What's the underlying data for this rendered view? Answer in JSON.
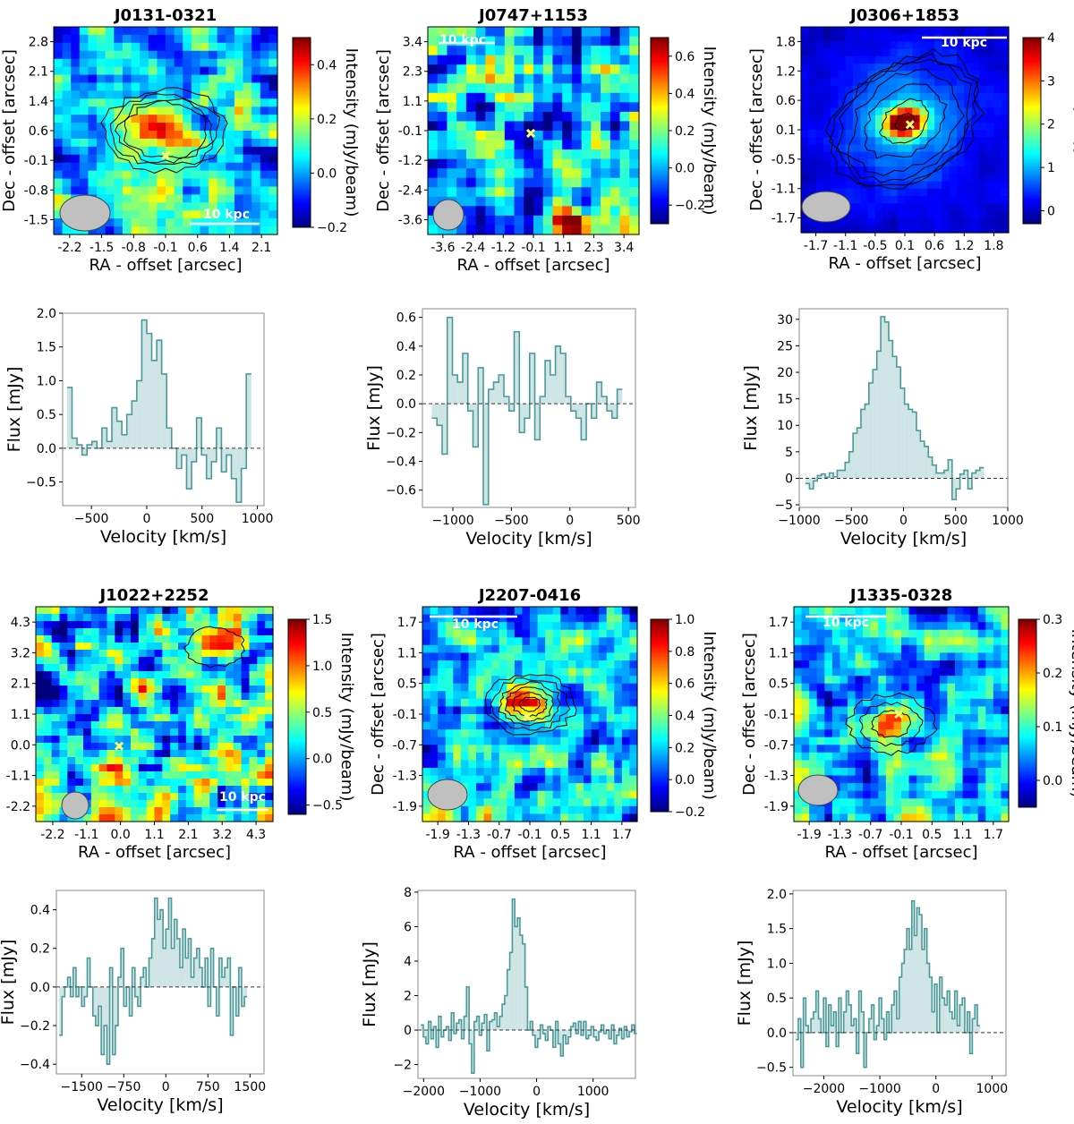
{
  "figure": {
    "colors": {
      "jet": [
        "#00007f",
        "#0000ff",
        "#007fff",
        "#00ffff",
        "#7fff7f",
        "#ffff00",
        "#ff7f00",
        "#ff0000",
        "#7f0000"
      ],
      "spectrum_line": "#4a9a9a",
      "spectrum_fill": "#cfe4e4",
      "marker": "#ffff66",
      "beam": "#c0c0c0"
    },
    "colorbar_label": "Intensity (mJy/beam)",
    "scale_bar_label": "10 kpc"
  },
  "chart_data": [
    {
      "type": "heatmap",
      "id": "map1",
      "title": "J0131-0321",
      "xlabel": "RA - offset [arcsec]",
      "ylabel": "Dec - offset [arcsec]",
      "xticks": [
        "-2.2",
        "-1.5",
        "-0.8",
        "-0.1",
        "0.6",
        "1.4",
        "2.1"
      ],
      "yticks": [
        "2.8",
        "2.1",
        "1.4",
        "0.6",
        "-0.1",
        "-0.8",
        "-1.5"
      ],
      "xlim": [
        -2.5,
        2.5
      ],
      "ylim": [
        -2.0,
        3.0
      ],
      "clim": [
        -0.2,
        0.5
      ],
      "cbar_ticks": [
        "0.4",
        "0.2",
        "0.0",
        "−0.2"
      ],
      "cbar_tick_values": [
        0.4,
        0.2,
        0.0,
        -0.2
      ],
      "peak": [
        0.0,
        0.5
      ],
      "marker": [
        0.0,
        -0.1
      ]
    },
    {
      "type": "heatmap",
      "id": "map2",
      "title": "J0747+1153",
      "xlabel": "RA - offset [arcsec]",
      "ylabel": "Dec - offset [arcsec]",
      "xticks": [
        "-3.6",
        "-2.4",
        "-1.2",
        "-0.1",
        "1.1",
        "2.3",
        "3.4"
      ],
      "yticks": [
        "3.4",
        "2.3",
        "1.1",
        "-0.1",
        "-1.2",
        "-2.4",
        "-3.6"
      ],
      "xlim": [
        -4.0,
        4.0
      ],
      "ylim": [
        -4.0,
        4.0
      ],
      "clim": [
        -0.3,
        0.7
      ],
      "cbar_ticks": [
        "0.6",
        "0.4",
        "0.2",
        "0.0",
        "−0.2"
      ],
      "cbar_tick_values": [
        0.6,
        0.4,
        0.2,
        0.0,
        -0.2
      ],
      "peak": [
        1.4,
        -3.4
      ],
      "marker": [
        -0.1,
        -0.1
      ]
    },
    {
      "type": "heatmap",
      "id": "map3",
      "title": "J0306+1853",
      "xlabel": "RA - offset [arcsec]",
      "ylabel": "Dec - offset [arcsec]",
      "xticks": [
        "-1.7",
        "-1.1",
        "-0.5",
        "0.1",
        "0.6",
        "1.2",
        "1.8"
      ],
      "yticks": [
        "1.8",
        "1.2",
        "0.6",
        "0.1",
        "-0.5",
        "-1.1",
        "-1.7"
      ],
      "xlim": [
        -2.0,
        2.0
      ],
      "ylim": [
        -2.0,
        2.0
      ],
      "clim": [
        -0.3,
        4.0
      ],
      "cbar_ticks": [
        "4",
        "3",
        "2",
        "1",
        "0"
      ],
      "cbar_tick_values": [
        4,
        3,
        2,
        1,
        0
      ],
      "peak": [
        0.0,
        0.15
      ],
      "marker": [
        0.1,
        0.1
      ]
    },
    {
      "type": "heatmap",
      "id": "map4",
      "title": "J1022+2252",
      "xlabel": "RA - offset [arcsec]",
      "ylabel": "Dec - offset [arcsec]",
      "xticks": [
        "-2.2",
        "-1.1",
        "0.0",
        "1.1",
        "2.1",
        "3.2",
        "4.3"
      ],
      "yticks": [
        "4.3",
        "3.2",
        "2.1",
        "1.1",
        "0.0",
        "-1.1",
        "-2.2"
      ],
      "xlim": [
        -2.6,
        4.8
      ],
      "ylim": [
        -2.6,
        4.8
      ],
      "clim": [
        -0.6,
        1.5
      ],
      "cbar_ticks": [
        "1.5",
        "1.0",
        "0.5",
        "0.0",
        "−0.5"
      ],
      "cbar_tick_values": [
        1.5,
        1.0,
        0.5,
        0.0,
        -0.5
      ],
      "peak": [
        3.0,
        3.4
      ],
      "marker": [
        0.0,
        0.0
      ]
    },
    {
      "type": "heatmap",
      "id": "map5",
      "title": "J2207-0416",
      "xlabel": "RA - offset [arcsec]",
      "ylabel": "Dec - offset [arcsec]",
      "xticks": [
        "-1.9",
        "-1.3",
        "-0.7",
        "-0.1",
        "0.5",
        "1.1",
        "1.7"
      ],
      "yticks": [
        "1.7",
        "1.1",
        "0.5",
        "-0.1",
        "-0.7",
        "-1.3",
        "-1.9"
      ],
      "xlim": [
        -2.2,
        2.1
      ],
      "ylim": [
        -2.2,
        2.1
      ],
      "clim": [
        -0.2,
        1.0
      ],
      "cbar_ticks": [
        "1.0",
        "0.8",
        "0.6",
        "0.4",
        "0.2",
        "0.0",
        "−0.2"
      ],
      "cbar_tick_values": [
        1.0,
        0.8,
        0.6,
        0.4,
        0.2,
        0.0,
        -0.2
      ],
      "peak": [
        -0.05,
        0.15
      ],
      "marker": [
        -0.1,
        -0.1
      ]
    },
    {
      "type": "heatmap",
      "id": "map6",
      "title": "J1335-0328",
      "xlabel": "RA - offset [arcsec]",
      "ylabel": "Dec - offset [arcsec]",
      "xticks": [
        "-1.9",
        "-1.3",
        "-0.7",
        "-0.1",
        "0.5",
        "1.1",
        "1.7"
      ],
      "yticks": [
        "1.7",
        "1.1",
        "0.5",
        "-0.1",
        "-0.7",
        "-1.3",
        "-1.9"
      ],
      "xlim": [
        -2.2,
        2.1
      ],
      "ylim": [
        -2.2,
        2.1
      ],
      "clim": [
        -0.05,
        0.3
      ],
      "cbar_ticks": [
        "0.3",
        "0.2",
        "0.1",
        "0.0"
      ],
      "cbar_tick_values": [
        0.3,
        0.2,
        0.1,
        0.0
      ],
      "peak": [
        -0.25,
        -0.25
      ],
      "marker": [
        -0.1,
        -0.05
      ]
    },
    {
      "type": "step",
      "id": "spec1",
      "xlabel": "Velocity [km/s]",
      "ylabel": "Flux [mJy]",
      "xlim": [
        -760,
        1060
      ],
      "ylim": [
        -0.85,
        2.0
      ],
      "xticks": [
        -500,
        0,
        500,
        1000
      ],
      "xtick_labels": [
        "−500",
        "0",
        "500",
        "1000"
      ],
      "yticks": [
        -0.5,
        0.0,
        0.5,
        1.0,
        1.5,
        2.0
      ],
      "ytick_labels": [
        "−0.5",
        "0.0",
        "0.5",
        "1.0",
        "1.5",
        "2.0"
      ],
      "x_start": -720,
      "x_step": 45,
      "values": [
        0.9,
        0.15,
        0.05,
        -0.1,
        0.05,
        0.1,
        0.0,
        0.3,
        0.1,
        0.6,
        0.4,
        0.2,
        0.5,
        0.7,
        1.0,
        1.9,
        1.7,
        1.3,
        1.6,
        1.1,
        0.3,
        0.0,
        -0.3,
        -0.1,
        -0.6,
        -0.2,
        0.45,
        -0.1,
        -0.45,
        -0.2,
        0.3,
        -0.35,
        -0.1,
        -0.45,
        -0.8,
        -0.3,
        1.1
      ]
    },
    {
      "type": "step",
      "id": "spec2",
      "xlabel": "Velocity [km/s]",
      "ylabel": "Flux [mJy]",
      "xlim": [
        -1260,
        560
      ],
      "ylim": [
        -0.72,
        0.66
      ],
      "xticks": [
        -1000,
        -500,
        0,
        500
      ],
      "xtick_labels": [
        "−1000",
        "−500",
        "0",
        "500"
      ],
      "yticks": [
        -0.6,
        -0.4,
        -0.2,
        0.0,
        0.2,
        0.4,
        0.6
      ],
      "ytick_labels": [
        "−0.6",
        "−0.4",
        "−0.2",
        "0.0",
        "0.2",
        "0.4",
        "0.6"
      ],
      "x_start": -1180,
      "x_step": 44,
      "values": [
        -0.1,
        -0.15,
        -0.35,
        0.6,
        0.2,
        0.15,
        0.35,
        -0.05,
        -0.3,
        0.25,
        -0.7,
        0.1,
        0.15,
        0.2,
        0.05,
        -0.05,
        0.5,
        -0.2,
        -0.1,
        0.35,
        -0.25,
        0.05,
        0.3,
        0.2,
        0.4,
        0.35,
        0.05,
        -0.05,
        -0.1,
        -0.25,
        0.0,
        -0.1,
        0.15,
        0.05,
        -0.05,
        -0.1,
        0.1
      ]
    },
    {
      "type": "step",
      "id": "spec3",
      "xlabel": "Velocity [km/s]",
      "ylabel": "Flux [mJy]",
      "xlim": [
        -1000,
        1000
      ],
      "ylim": [
        -5.5,
        32
      ],
      "xticks": [
        -1000,
        -500,
        0,
        500,
        1000
      ],
      "xtick_labels": [
        "−1000",
        "−500",
        "0",
        "500",
        "1000"
      ],
      "yticks": [
        -5,
        0,
        5,
        10,
        15,
        20,
        25,
        30
      ],
      "ytick_labels": [
        "−5",
        "0",
        "5",
        "10",
        "15",
        "20",
        "25",
        "30"
      ],
      "x_start": -940,
      "x_step": 38,
      "values": [
        -1.0,
        -2.0,
        -0.5,
        0.5,
        0.8,
        0.2,
        1.0,
        0.3,
        1.5,
        1.5,
        3.0,
        5.0,
        8.5,
        9.5,
        13.0,
        14.0,
        18.0,
        20.5,
        24.0,
        30.5,
        29.5,
        26.0,
        23.0,
        21.0,
        17.0,
        14.0,
        13.0,
        12.5,
        9.0,
        7.0,
        6.0,
        4.0,
        2.5,
        1.0,
        1.0,
        1.5,
        3.5,
        -4.0,
        -2.0,
        0.8,
        1.5,
        -2.0,
        1.0,
        1.5,
        2.0
      ]
    },
    {
      "type": "step",
      "id": "spec4",
      "xlabel": "Velocity [km/s]",
      "ylabel": "Flux [mJy]",
      "xlim": [
        -1950,
        1750
      ],
      "ylim": [
        -0.45,
        0.5
      ],
      "xticks": [
        -1500,
        -750,
        0,
        750,
        1500
      ],
      "xtick_labels": [
        "−1500",
        "−750",
        "0",
        "750",
        "1500"
      ],
      "yticks": [
        -0.4,
        -0.2,
        0.0,
        0.2,
        0.4
      ],
      "ytick_labels": [
        "−0.4",
        "−0.2",
        "0.0",
        "0.2",
        "0.4"
      ],
      "x_start": -1900,
      "x_step": 50,
      "values": [
        -0.25,
        -0.05,
        0.0,
        0.05,
        -0.05,
        0.1,
        -0.05,
        0.0,
        -0.1,
        -0.05,
        0.15,
        0.0,
        -0.15,
        -0.2,
        -0.1,
        -0.35,
        -0.2,
        -0.4,
        0.1,
        -0.35,
        -0.2,
        0.05,
        0.2,
        -0.1,
        0.0,
        -0.15,
        0.1,
        -0.05,
        -0.1,
        0.05,
        0.1,
        0.0,
        0.15,
        0.25,
        0.46,
        0.35,
        0.4,
        0.2,
        0.3,
        0.46,
        0.2,
        0.35,
        0.25,
        0.1,
        0.3,
        0.15,
        0.25,
        0.05,
        0.15,
        0.2,
        0.1,
        0.0,
        0.15,
        -0.1,
        0.2,
        0.0,
        -0.15,
        0.15,
        0.05,
        0.1,
        0.15,
        -0.25,
        0.0,
        -0.15,
        0.1,
        -0.1,
        -0.05
      ]
    },
    {
      "type": "step",
      "id": "spec5",
      "xlabel": "Velocity [km/s]",
      "ylabel": "Flux [mJy]",
      "xlim": [
        -2100,
        1750
      ],
      "ylim": [
        -2.8,
        8.1
      ],
      "xticks": [
        -2000,
        -1000,
        0,
        1000
      ],
      "xtick_labels": [
        "−2000",
        "−1000",
        "0",
        "1000"
      ],
      "yticks": [
        -2,
        0,
        2,
        4,
        6,
        8
      ],
      "ytick_labels": [
        "−2",
        "0",
        "2",
        "4",
        "6",
        "8"
      ],
      "x_start": -2050,
      "x_step": 45,
      "values": [
        0.3,
        -0.4,
        -0.8,
        0.5,
        -0.5,
        0.2,
        -1.0,
        0.8,
        -0.4,
        0.0,
        0.2,
        -0.6,
        1.0,
        -0.2,
        0.4,
        0.6,
        -0.5,
        0.8,
        2.5,
        -0.8,
        -2.5,
        0.5,
        0.8,
        -0.3,
        0.4,
        0.9,
        -1.2,
        0.5,
        0.6,
        1.0,
        0.2,
        0.8,
        1.5,
        2.0,
        3.5,
        4.5,
        7.6,
        6.0,
        6.5,
        5.5,
        5.0,
        2.5,
        0.0,
        0.5,
        -0.3,
        -1.0,
        -0.5,
        0.3,
        -0.2,
        -0.6,
        0.2,
        0.0,
        -1.0,
        0.5,
        -0.8,
        -1.5,
        -0.3,
        -0.8,
        -0.4,
        0.2,
        0.4,
        -0.2,
        0.5,
        -0.3,
        0.5,
        -0.5,
        -0.3,
        0.2,
        -0.4,
        -0.6,
        -0.1,
        0.3,
        -0.2,
        0.0,
        -0.5,
        0.3,
        -0.8,
        -0.3,
        0.1,
        -0.5,
        0.2,
        -0.4,
        -0.1,
        0.3,
        -0.2
      ]
    },
    {
      "type": "step",
      "id": "spec6",
      "xlabel": "Velocity [km/s]",
      "ylabel": "Flux [mJy]",
      "xlim": [
        -2550,
        1250
      ],
      "ylim": [
        -0.62,
        2.05
      ],
      "xticks": [
        -2000,
        -1000,
        0,
        1000
      ],
      "xtick_labels": [
        "−2000",
        "−1000",
        "0",
        "1000"
      ],
      "yticks": [
        -0.5,
        0.0,
        0.5,
        1.0,
        1.5,
        2.0
      ],
      "ytick_labels": [
        "−0.5",
        "0.0",
        "0.5",
        "1.0",
        "1.5",
        "2.0"
      ],
      "x_start": -2500,
      "x_step": 45,
      "values": [
        -0.1,
        0.2,
        -0.5,
        0.5,
        0.1,
        0.0,
        0.2,
        0.3,
        0.6,
        0.2,
        0.0,
        0.5,
        -0.2,
        0.4,
        0.1,
        0.3,
        -0.2,
        0.5,
        0.0,
        0.3,
        0.6,
        0.4,
        0.1,
        0.2,
        -0.3,
        0.6,
        0.3,
        -0.5,
        0.0,
        0.2,
        0.4,
        -0.1,
        0.1,
        0.5,
        0.2,
        -0.1,
        0.3,
        0.0,
        0.4,
        0.6,
        0.2,
        0.8,
        1.0,
        1.2,
        1.5,
        1.2,
        1.9,
        1.4,
        1.8,
        1.7,
        1.2,
        1.5,
        1.0,
        0.8,
        0.3,
        0.7,
        0.0,
        0.8,
        0.5,
        0.4,
        0.6,
        0.3,
        0.2,
        0.6,
        0.1,
        0.4,
        0.5,
        0.0,
        0.3,
        -0.3,
        0.2,
        0.4,
        0.1
      ]
    }
  ]
}
